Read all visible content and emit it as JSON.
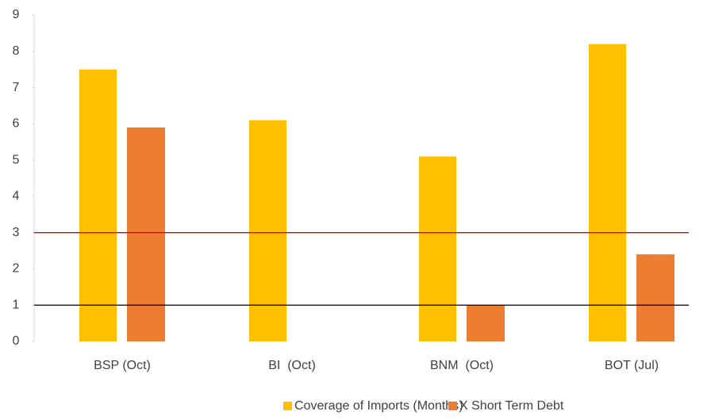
{
  "chart_data": {
    "type": "bar",
    "categories": [
      "BSP (Oct)",
      "BI  (Oct)",
      "BNM  (Oct)",
      "BOT (Jul)"
    ],
    "series": [
      {
        "name": "Coverage of Imports (Months)",
        "color": "#ffc000",
        "values": [
          7.5,
          6.1,
          5.1,
          8.2
        ]
      },
      {
        "name": "X Short Term Debt",
        "color": "#ed7d31",
        "values": [
          5.9,
          null,
          1.0,
          2.4
        ]
      }
    ],
    "reference_lines": [
      {
        "value": 3,
        "color": "#e00000"
      },
      {
        "value": 1,
        "color": "#000000"
      }
    ],
    "ylim": [
      0,
      9
    ],
    "yticks": [
      0,
      1,
      2,
      3,
      4,
      5,
      6,
      7,
      8,
      9
    ],
    "legend": "bottom"
  }
}
